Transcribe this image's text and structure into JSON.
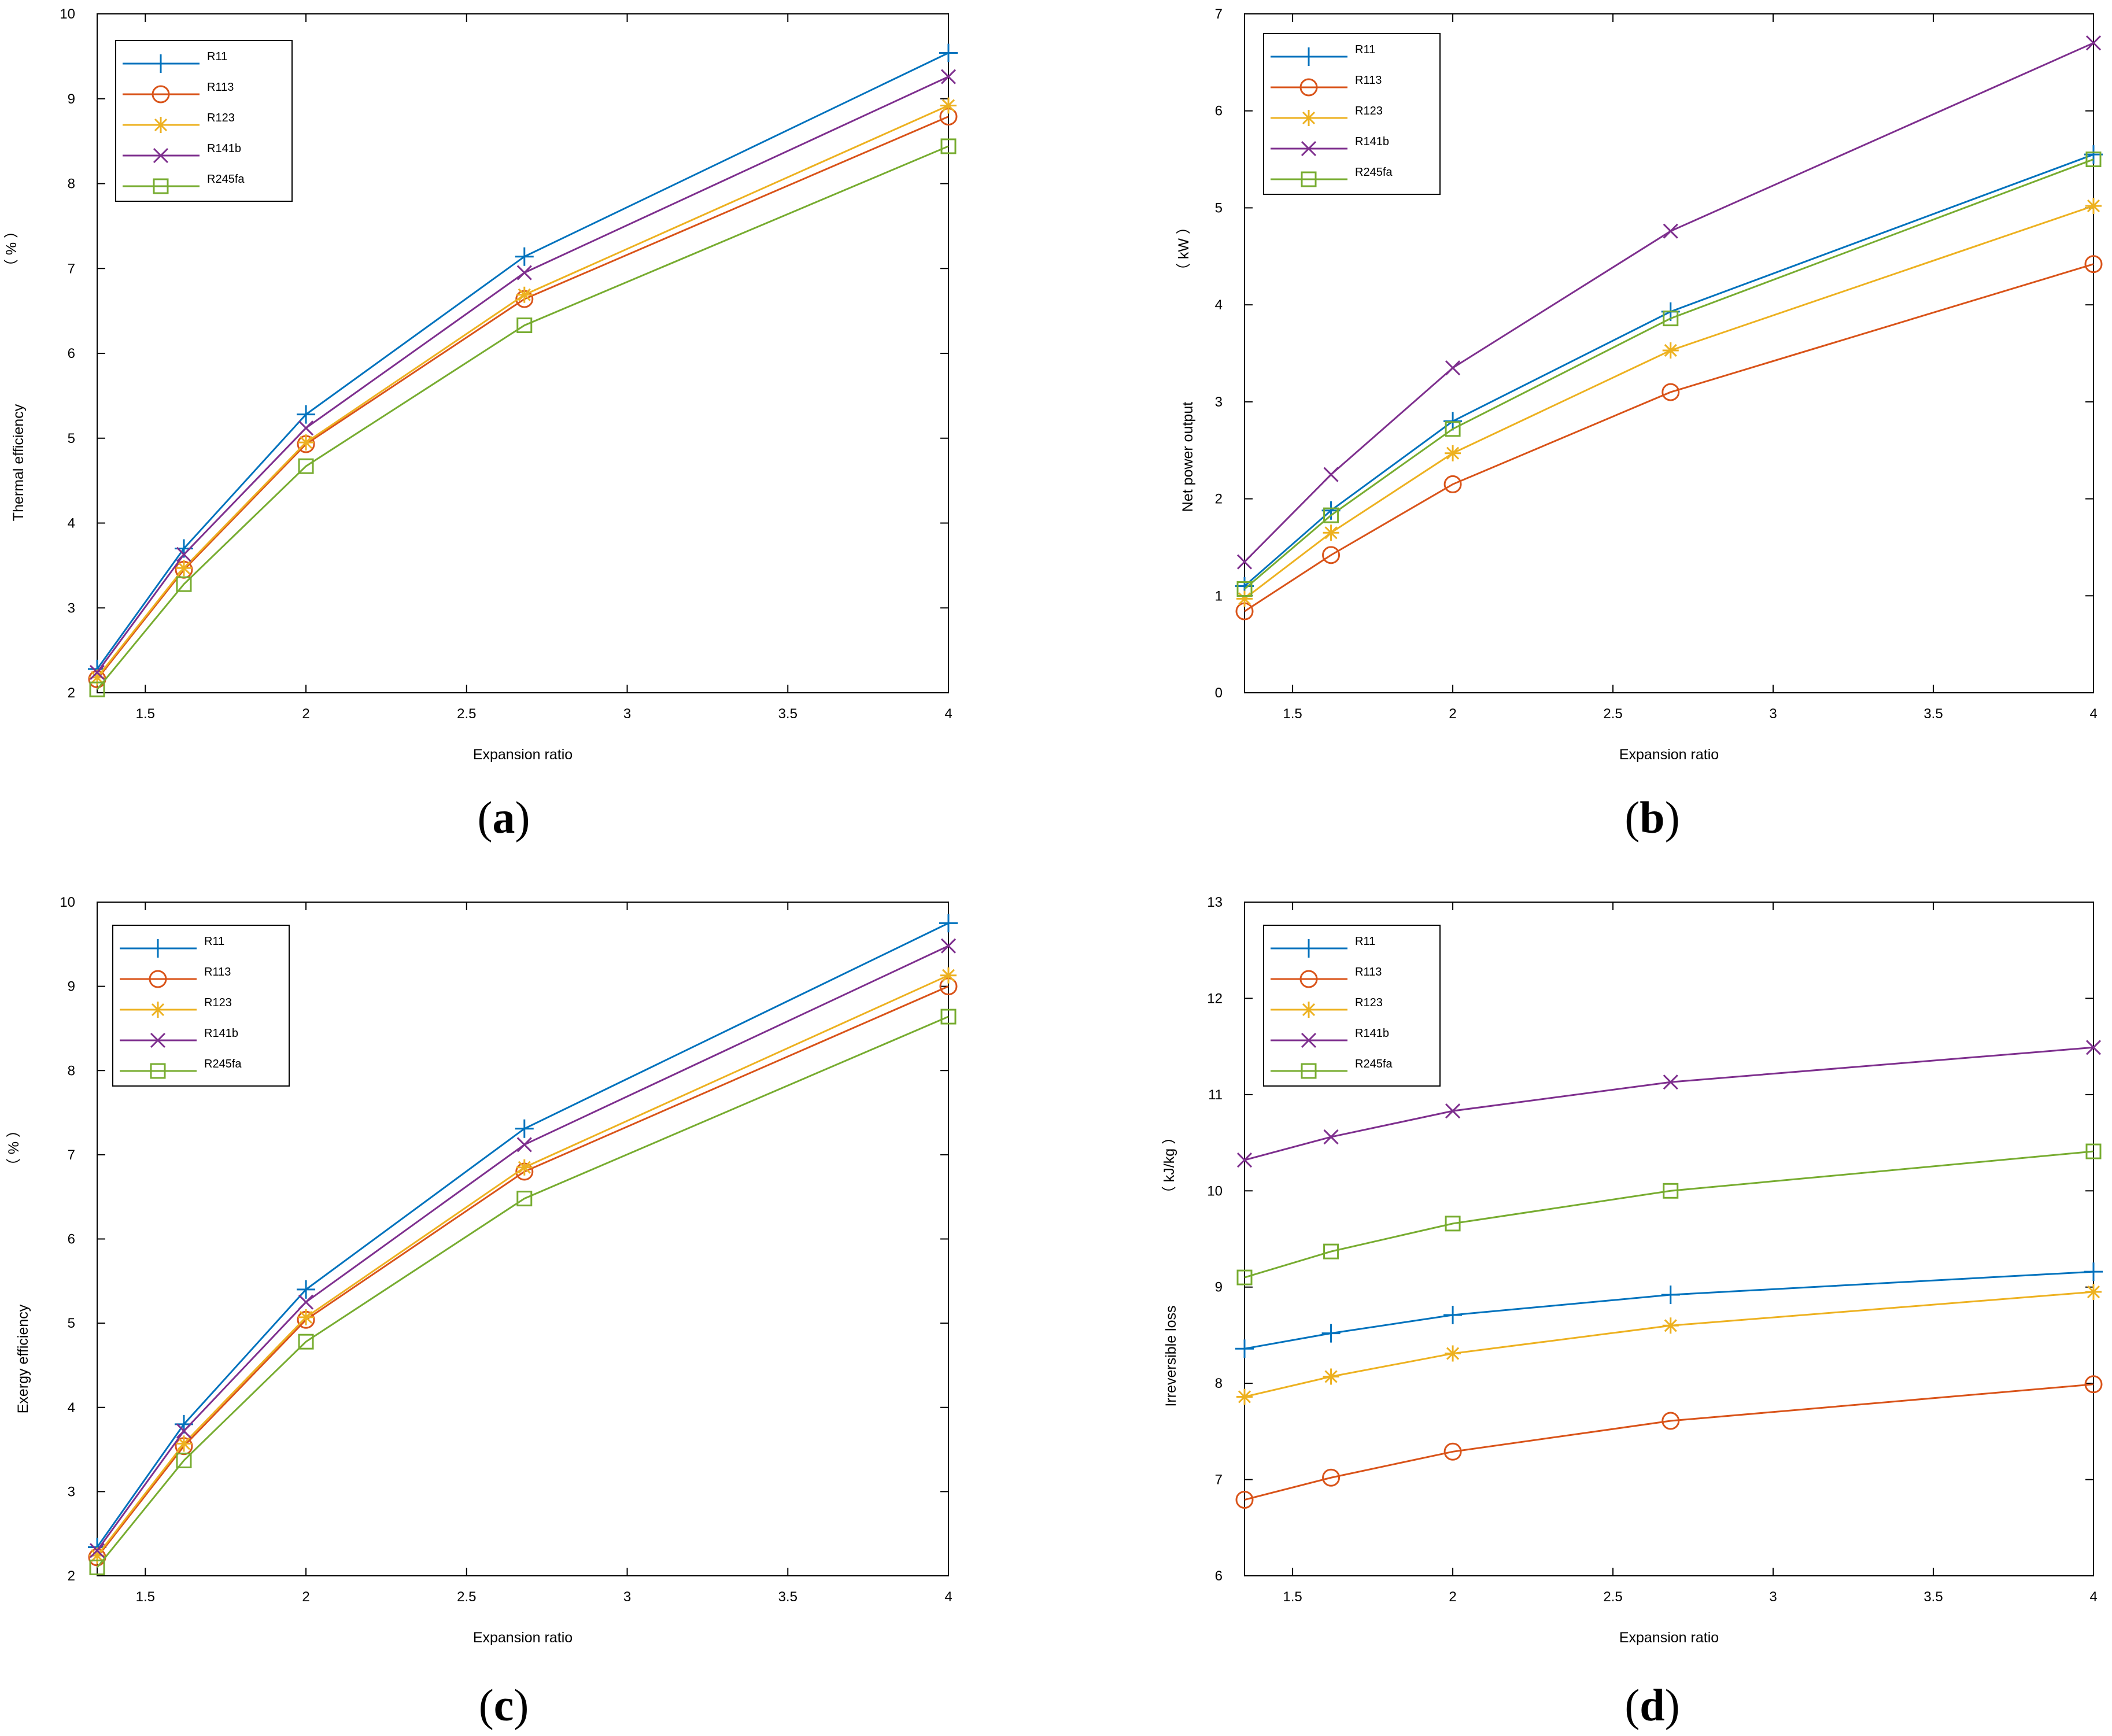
{
  "series_styles": [
    {
      "name": "R11",
      "color": "#0072BD",
      "marker": "plus"
    },
    {
      "name": "R113",
      "color": "#D95319",
      "marker": "circle"
    },
    {
      "name": "R123",
      "color": "#EDB120",
      "marker": "asterisk"
    },
    {
      "name": "R141b",
      "color": "#7E2F8E",
      "marker": "x"
    },
    {
      "name": "R245fa",
      "color": "#77AC30",
      "marker": "square"
    }
  ],
  "chart_data": [
    {
      "panel": "a",
      "type": "line",
      "xlabel": "Expansion ratio",
      "ylabel": "Thermal efficiency",
      "unit": "%",
      "unit_paren_open": "（",
      "unit_paren_close": "）",
      "x": [
        1.35,
        1.62,
        2.0,
        2.68,
        4.0
      ],
      "xlim": [
        1.35,
        4.0
      ],
      "ylim": [
        2,
        10
      ],
      "xticks": [
        "1.5",
        "2",
        "2.5",
        "3",
        "3.5",
        "4"
      ],
      "xtick_values": [
        1.5,
        2,
        2.5,
        3,
        3.5,
        4
      ],
      "yticks": [
        "2",
        "3",
        "4",
        "5",
        "6",
        "7",
        "8",
        "9",
        "10"
      ],
      "ytick_values": [
        2,
        3,
        4,
        5,
        6,
        7,
        8,
        9,
        10
      ],
      "series": [
        {
          "name": "R11",
          "values": [
            2.28,
            3.7,
            5.28,
            7.14,
            9.54
          ]
        },
        {
          "name": "R113",
          "values": [
            2.16,
            3.45,
            4.93,
            6.64,
            8.79
          ]
        },
        {
          "name": "R123",
          "values": [
            2.18,
            3.47,
            4.95,
            6.69,
            8.92
          ]
        },
        {
          "name": "R141b",
          "values": [
            2.24,
            3.63,
            5.12,
            6.95,
            9.26
          ]
        },
        {
          "name": "R245fa",
          "values": [
            2.04,
            3.28,
            4.67,
            6.33,
            8.44
          ]
        }
      ]
    },
    {
      "panel": "b",
      "type": "line",
      "xlabel": "Expansion ratio",
      "ylabel": "Net power output",
      "unit": "kW",
      "unit_paren_open": "（",
      "unit_paren_close": "）",
      "x": [
        1.35,
        1.62,
        2.0,
        2.68,
        4.0
      ],
      "xlim": [
        1.35,
        4.0
      ],
      "ylim": [
        0,
        7
      ],
      "xticks": [
        "1.5",
        "2",
        "2.5",
        "3",
        "3.5",
        "4"
      ],
      "xtick_values": [
        1.5,
        2,
        2.5,
        3,
        3.5,
        4
      ],
      "yticks": [
        "0",
        "1",
        "2",
        "3",
        "4",
        "5",
        "6",
        "7"
      ],
      "ytick_values": [
        0,
        1,
        2,
        3,
        4,
        5,
        6,
        7
      ],
      "series": [
        {
          "name": "R11",
          "values": [
            1.1,
            1.88,
            2.8,
            3.93,
            5.55
          ]
        },
        {
          "name": "R113",
          "values": [
            0.84,
            1.42,
            2.15,
            3.1,
            4.42
          ]
        },
        {
          "name": "R123",
          "values": [
            0.97,
            1.65,
            2.47,
            3.53,
            5.02
          ]
        },
        {
          "name": "R141b",
          "values": [
            1.35,
            2.25,
            3.35,
            4.76,
            6.7
          ]
        },
        {
          "name": "R245fa",
          "values": [
            1.07,
            1.83,
            2.72,
            3.86,
            5.5
          ]
        }
      ]
    },
    {
      "panel": "c",
      "type": "line",
      "xlabel": "Expansion ratio",
      "ylabel": "Exergy efficiency",
      "unit": "%",
      "unit_paren_open": "（",
      "unit_paren_close": "）",
      "x": [
        1.35,
        1.62,
        2.0,
        2.68,
        4.0
      ],
      "xlim": [
        1.35,
        4.0
      ],
      "ylim": [
        2,
        10
      ],
      "xticks": [
        "1.5",
        "2",
        "2.5",
        "3",
        "3.5",
        "4"
      ],
      "xtick_values": [
        1.5,
        2,
        2.5,
        3,
        3.5,
        4
      ],
      "yticks": [
        "2",
        "3",
        "4",
        "5",
        "6",
        "7",
        "8",
        "9",
        "10"
      ],
      "ytick_values": [
        2,
        3,
        4,
        5,
        6,
        7,
        8,
        9,
        10
      ],
      "series": [
        {
          "name": "R11",
          "values": [
            2.34,
            3.8,
            5.4,
            7.31,
            9.75
          ]
        },
        {
          "name": "R113",
          "values": [
            2.22,
            3.54,
            5.04,
            6.8,
            9.0
          ]
        },
        {
          "name": "R123",
          "values": [
            2.24,
            3.57,
            5.07,
            6.85,
            9.13
          ]
        },
        {
          "name": "R141b",
          "values": [
            2.3,
            3.72,
            5.25,
            7.12,
            9.48
          ]
        },
        {
          "name": "R245fa",
          "values": [
            2.1,
            3.37,
            4.78,
            6.48,
            8.64
          ]
        }
      ]
    },
    {
      "panel": "d",
      "type": "line",
      "xlabel": "Expansion ratio",
      "ylabel": "Irreversible loss",
      "unit": "kJ/kg",
      "unit_paren_open": "（",
      "unit_paren_close": "）",
      "x": [
        1.35,
        1.62,
        2.0,
        2.68,
        4.0
      ],
      "xlim": [
        1.35,
        4.0
      ],
      "ylim": [
        6,
        13
      ],
      "xticks": [
        "1.5",
        "2",
        "2.5",
        "3",
        "3.5",
        "4"
      ],
      "xtick_values": [
        1.5,
        2,
        2.5,
        3,
        3.5,
        4
      ],
      "yticks": [
        "6",
        "7",
        "8",
        "9",
        "10",
        "11",
        "12",
        "13"
      ],
      "ytick_values": [
        6,
        7,
        8,
        9,
        10,
        11,
        12,
        13
      ],
      "series": [
        {
          "name": "R11",
          "values": [
            8.36,
            8.52,
            8.71,
            8.92,
            9.16
          ]
        },
        {
          "name": "R113",
          "values": [
            6.79,
            7.02,
            7.29,
            7.61,
            7.99
          ]
        },
        {
          "name": "R123",
          "values": [
            7.86,
            8.07,
            8.31,
            8.6,
            8.95
          ]
        },
        {
          "name": "R141b",
          "values": [
            10.32,
            10.56,
            10.83,
            11.13,
            11.49
          ]
        },
        {
          "name": "R245fa",
          "values": [
            9.1,
            9.37,
            9.66,
            10.0,
            10.41
          ]
        }
      ]
    }
  ],
  "panel_labels": {
    "a": {
      "open": "(",
      "letter": "a",
      "close": ")"
    },
    "b": {
      "open": "(",
      "letter": "b",
      "close": ")"
    },
    "c": {
      "open": "(",
      "letter": "c",
      "close": ")"
    },
    "d": {
      "open": "(",
      "letter": "d",
      "close": ")"
    }
  }
}
